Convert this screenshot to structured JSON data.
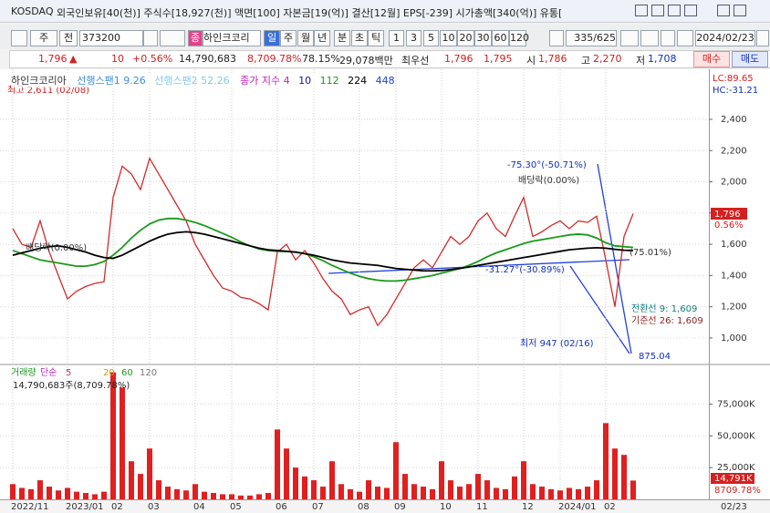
{
  "title_bar": {
    "market": "KOSDAQ",
    "info": "외국인보유[40(천)]  주식수[18,927(천)]  액면[100]  자본금[19(억)]  결산[12월]  EPS[-239]  시가총액[340(억)]  유통["
  },
  "toolbar": {
    "period_type": "주",
    "adjust": "전",
    "code": "373200",
    "search": "종",
    "name": "하인크코리",
    "periods": [
      "일",
      "주",
      "월",
      "년",
      "분",
      "초",
      "틱"
    ],
    "intervals": [
      "1",
      "3",
      "5",
      "10",
      "20",
      "30",
      "60",
      "120"
    ],
    "count": "335/625",
    "date": "2024/02/23"
  },
  "quote": {
    "price": "1,796",
    "arrow": "▲",
    "change": "10",
    "change_rate": "+0.56%",
    "volume": "14,790,683",
    "volume_rate": "8,709.78%",
    "turnover": "78.15%",
    "amount": "29,078백만",
    "best_label": "최우선",
    "ask": "1,796",
    "bid": "1,795",
    "open_label": "시",
    "open": "1,786",
    "high_label": "고",
    "high": "2,270",
    "low_label": "저",
    "low": "1,708",
    "buy": "매수",
    "sell": "매도"
  },
  "chart_data": [
    {
      "type": "line",
      "series": [
        {
          "name": "하인크코리아",
          "color": "#d42a2a",
          "values": [
            1700,
            1600,
            1580,
            1750,
            1550,
            1400,
            1250,
            1300,
            1330,
            1350,
            1360,
            1900,
            2100,
            2050,
            1950,
            2150,
            2050,
            1950,
            1850,
            1750,
            1600,
            1500,
            1400,
            1320,
            1300,
            1260,
            1250,
            1220,
            1180,
            1550,
            1600,
            1500,
            1560,
            1480,
            1380,
            1300,
            1250,
            1150,
            1180,
            1200,
            1080,
            1150,
            1250,
            1350,
            1450,
            1500,
            1450,
            1550,
            1650,
            1600,
            1650,
            1750,
            1800,
            1700,
            1650,
            1780,
            1900,
            1650,
            1680,
            1720,
            1750,
            1700,
            1750,
            1740,
            1780,
            1500,
            1200,
            1650,
            1796
          ]
        },
        {
          "name": "112",
          "color": "#1a9a1a",
          "values": [
            1560,
            1540,
            1520,
            1500,
            1490,
            1480,
            1470,
            1460,
            1460,
            1470,
            1490,
            1530,
            1580,
            1640,
            1690,
            1730,
            1755,
            1765,
            1765,
            1755,
            1740,
            1720,
            1695,
            1670,
            1645,
            1615,
            1590,
            1570,
            1560,
            1555,
            1555,
            1550,
            1540,
            1520,
            1495,
            1465,
            1440,
            1415,
            1395,
            1380,
            1370,
            1365,
            1365,
            1370,
            1380,
            1390,
            1400,
            1415,
            1430,
            1445,
            1465,
            1490,
            1520,
            1545,
            1565,
            1585,
            1605,
            1620,
            1630,
            1640,
            1650,
            1660,
            1665,
            1660,
            1640,
            1610,
            1590,
            1585,
            1580
          ]
        },
        {
          "name": "224",
          "color": "#000000",
          "values": [
            1530,
            1545,
            1560,
            1575,
            1585,
            1590,
            1580,
            1565,
            1550,
            1530,
            1515,
            1510,
            1530,
            1560,
            1590,
            1620,
            1645,
            1665,
            1675,
            1680,
            1675,
            1665,
            1650,
            1635,
            1620,
            1605,
            1590,
            1575,
            1565,
            1560,
            1555,
            1550,
            1540,
            1530,
            1515,
            1500,
            1490,
            1480,
            1475,
            1470,
            1465,
            1455,
            1445,
            1440,
            1435,
            1430,
            1430,
            1432,
            1438,
            1445,
            1455,
            1465,
            1475,
            1485,
            1495,
            1505,
            1515,
            1525,
            1535,
            1545,
            1555,
            1565,
            1570,
            1575,
            1578,
            1575,
            1568,
            1562,
            1560
          ]
        }
      ],
      "legend_extra": [
        {
          "text": "선행스팬1 9.26",
          "color": "#3c8fe0"
        },
        {
          "text": "선행스팬2 52.26",
          "color": "#86c8ee"
        },
        {
          "text": "종가 지수 4",
          "color": "#c020c0"
        },
        {
          "text": "10",
          "color": "#1010c0"
        },
        {
          "text": "448",
          "color": "#2040d0"
        }
      ],
      "ylim": [
        848,
        2639
      ],
      "yticks": [
        {
          "value": 1000,
          "label": "1,000"
        },
        {
          "value": 1200,
          "label": "1,200"
        },
        {
          "value": 1400,
          "label": "1,400"
        },
        {
          "value": 1600,
          "label": "1,600"
        },
        {
          "value": 1800,
          "label": "1,800"
        },
        {
          "value": 2000,
          "label": "2,000"
        },
        {
          "value": 2200,
          "label": "2,200"
        },
        {
          "value": 2400,
          "label": "2,400"
        }
      ],
      "grid": true,
      "indicators": {
        "lc": "LC:89.65",
        "hc": "HC:-31.21"
      },
      "price_tag": {
        "label": "1,796",
        "rate": "0.56%"
      },
      "annotations": [
        "최고 2,611 (02/08)",
        "-75.30°(-50.71%)",
        "배당락(0.00%)",
        "배당락(0.00%)",
        "-31.27°(-30.89%)",
        "(75.01%)",
        "전환선 9: 1,609",
        "기준선 26: 1,609",
        "최저 947 (02/16)",
        "875.04"
      ]
    },
    {
      "type": "bar",
      "title": "거래량",
      "legend": [
        "단순",
        "5",
        "20",
        "60",
        "120"
      ],
      "summary": "14,790,683주(8,709.78%)",
      "color": "#e02020",
      "categories": [
        "2022/11",
        null,
        null,
        null,
        null,
        null,
        "2023/01",
        null,
        null,
        null,
        null,
        "02",
        null,
        null,
        null,
        "03",
        null,
        null,
        null,
        null,
        "04",
        null,
        null,
        null,
        "05",
        null,
        null,
        null,
        null,
        "06",
        null,
        null,
        null,
        "07",
        null,
        null,
        null,
        null,
        "08",
        null,
        null,
        null,
        "09",
        null,
        null,
        null,
        null,
        "10",
        null,
        null,
        null,
        "11",
        null,
        null,
        null,
        null,
        "12",
        null,
        null,
        null,
        "2024/01",
        null,
        null,
        null,
        null,
        "02",
        null,
        null,
        null
      ],
      "values": [
        12000,
        9000,
        8000,
        15000,
        10000,
        7000,
        9000,
        6000,
        5000,
        4000,
        6000,
        100000,
        88000,
        30000,
        20000,
        40000,
        15000,
        10000,
        8000,
        7000,
        12000,
        6000,
        5000,
        4000,
        4000,
        3000,
        3000,
        4000,
        5000,
        55000,
        40000,
        25000,
        18000,
        15000,
        10000,
        30000,
        12000,
        8000,
        6000,
        15000,
        10000,
        9000,
        45000,
        20000,
        12000,
        10000,
        8000,
        30000,
        15000,
        10000,
        12000,
        20000,
        15000,
        9000,
        8000,
        18000,
        30000,
        12000,
        10000,
        8000,
        7000,
        9000,
        8000,
        10000,
        15000,
        60000,
        40000,
        35000,
        14791
      ],
      "ylim": [
        0,
        104000
      ],
      "yticks": [
        {
          "value": 25000,
          "label": "25,000K"
        },
        {
          "value": 50000,
          "label": "50,000K"
        },
        {
          "value": 75000,
          "label": "75,000K"
        }
      ],
      "value_tag": "14,791K",
      "rate_tag": "8709.78%",
      "last_date": "02/23"
    }
  ]
}
